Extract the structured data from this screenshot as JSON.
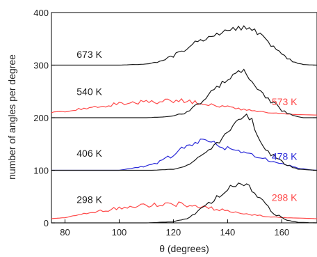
{
  "chart_data": {
    "type": "line",
    "title": "",
    "xlabel": "θ (degrees)",
    "ylabel": "number of angles per degree",
    "xlim": [
      75,
      173
    ],
    "ylim": [
      0,
      400
    ],
    "xticks": [
      80,
      100,
      120,
      140,
      160
    ],
    "yticks": [
      0,
      100,
      200,
      300,
      400
    ],
    "xtick_labels": [
      "80",
      "100",
      "120",
      "140",
      "160"
    ],
    "ytick_labels": [
      "0",
      "100",
      "200",
      "300",
      "400"
    ],
    "grid": false,
    "legend": "none",
    "colors": {
      "black": "#1a1a1a",
      "red": "#ff4a4a",
      "blue": "#2b2bd9"
    },
    "labels": [
      {
        "text": "673 K",
        "color": "#1a1a1a",
        "x": 89,
        "y": 314
      },
      {
        "text": "540 K",
        "color": "#1a1a1a",
        "x": 89,
        "y": 243
      },
      {
        "text": "573 K",
        "color": "#ff4a4a",
        "x": 161,
        "y": 224
      },
      {
        "text": "406 K",
        "color": "#1a1a1a",
        "x": 89,
        "y": 126
      },
      {
        "text": "478 K",
        "color": "#2b2bd9",
        "x": 161,
        "y": 120
      },
      {
        "text": "298 K",
        "color": "#1a1a1a",
        "x": 89,
        "y": 38
      },
      {
        "text": "298 K",
        "color": "#ff4a4a",
        "x": 161,
        "y": 42
      }
    ],
    "series": [
      {
        "color": "#1a1a1a",
        "x": [
          75,
          100,
          110,
          116,
          120,
          124,
          128,
          132,
          136,
          140,
          144,
          148,
          150,
          152,
          156,
          160,
          164,
          168,
          173
        ],
        "y": [
          300,
          300,
          302,
          308,
          318,
          330,
          342,
          352,
          360,
          366,
          370,
          372,
          366,
          358,
          340,
          322,
          306,
          301,
          300
        ]
      },
      {
        "color": "#ff4a4a",
        "x": [
          75,
          80,
          90,
          100,
          110,
          120,
          125,
          130,
          135,
          140,
          145,
          150,
          155,
          160,
          165,
          173
        ],
        "y": [
          210,
          212,
          220,
          226,
          230,
          232,
          232,
          228,
          225,
          220,
          216,
          213,
          210,
          208,
          206,
          205
        ]
      },
      {
        "color": "#1a1a1a",
        "x": [
          75,
          100,
          110,
          118,
          124,
          128,
          132,
          136,
          140,
          143,
          146,
          148,
          150,
          152,
          156,
          160,
          164,
          168,
          173
        ],
        "y": [
          200,
          200,
          200,
          202,
          208,
          222,
          238,
          258,
          272,
          285,
          290,
          275,
          262,
          252,
          232,
          214,
          204,
          200,
          200
        ]
      },
      {
        "color": "#2b2bd9",
        "x": [
          75,
          100,
          110,
          116,
          120,
          124,
          128,
          131,
          134,
          138,
          142,
          146,
          150,
          154,
          158,
          162,
          166,
          170,
          173
        ],
        "y": [
          100,
          100,
          108,
          118,
          130,
          144,
          152,
          160,
          156,
          145,
          138,
          134,
          128,
          122,
          116,
          110,
          104,
          101,
          100
        ]
      },
      {
        "color": "#1a1a1a",
        "x": [
          75,
          100,
          112,
          120,
          126,
          130,
          134,
          138,
          141,
          144,
          147,
          149,
          151,
          154,
          158,
          162,
          166,
          173
        ],
        "y": [
          100,
          100,
          100,
          102,
          110,
          128,
          140,
          160,
          180,
          195,
          205,
          195,
          168,
          140,
          122,
          110,
          102,
          100
        ]
      },
      {
        "color": "#ff4a4a",
        "x": [
          75,
          80,
          90,
          100,
          110,
          120,
          128,
          134,
          138,
          142,
          146,
          150,
          155,
          160,
          173
        ],
        "y": [
          8,
          10,
          20,
          28,
          34,
          36,
          34,
          28,
          24,
          20,
          17,
          15,
          12,
          10,
          8
        ]
      },
      {
        "color": "#1a1a1a",
        "x": [
          75,
          110,
          120,
          126,
          130,
          134,
          138,
          141,
          144,
          146,
          148,
          150,
          154,
          158,
          162,
          166,
          173
        ],
        "y": [
          0,
          0,
          2,
          10,
          25,
          40,
          55,
          68,
          75,
          72,
          68,
          55,
          35,
          15,
          5,
          1,
          0
        ]
      }
    ]
  }
}
